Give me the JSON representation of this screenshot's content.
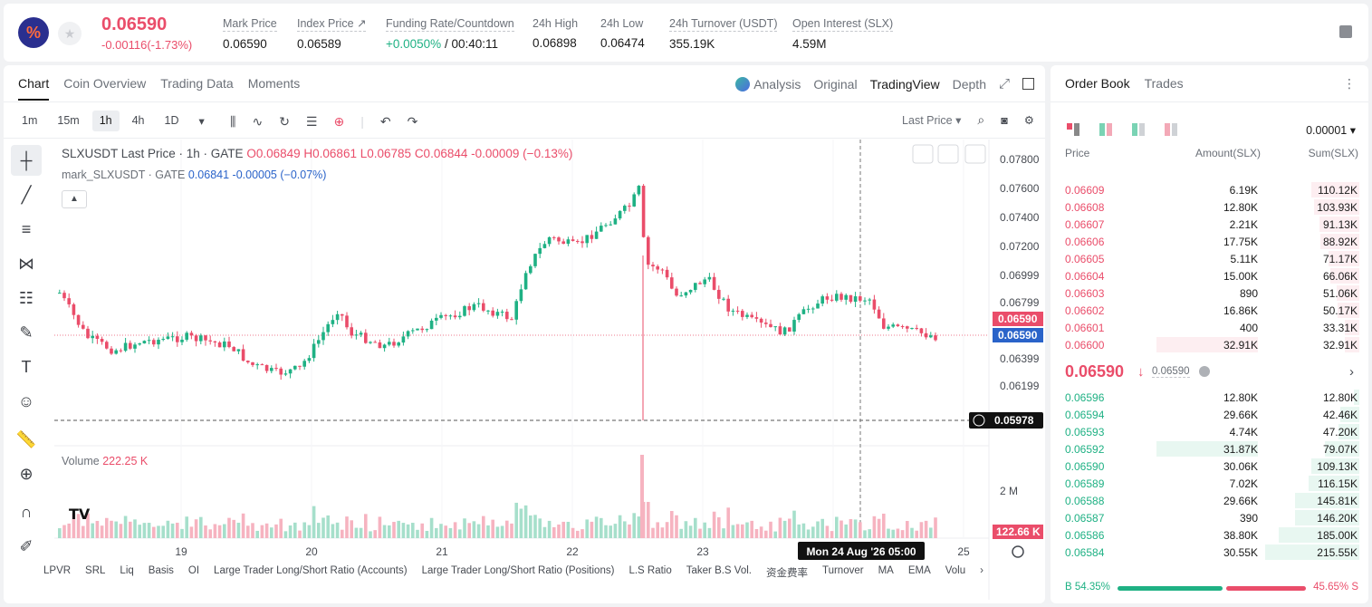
{
  "header": {
    "last_price": "0.06590",
    "change": "-0.00116(-1.73%)",
    "stats": [
      {
        "label": "Mark Price",
        "value": "0.06590"
      },
      {
        "label": "Index Price ↗",
        "value": "0.06589"
      },
      {
        "label": "Funding Rate/Countdown",
        "value_green": "+0.0050%",
        "value": " / 00:40:11"
      },
      {
        "label": "24h High",
        "value": "0.06898"
      },
      {
        "label": "24h Low",
        "value": "0.06474"
      },
      {
        "label": "24h Turnover (USDT)",
        "value": "355.19K"
      },
      {
        "label": "Open Interest (SLX)",
        "value": "4.59M"
      }
    ]
  },
  "chart_tabs": [
    "Chart",
    "Coin Overview",
    "Trading Data",
    "Moments"
  ],
  "chart_view_tabs": [
    "Analysis",
    "Original",
    "TradingView",
    "Depth"
  ],
  "intervals": [
    "1m",
    "15m",
    "1h",
    "4h",
    "1D"
  ],
  "last_price_select": "Last Price ▾",
  "legend": {
    "symbol": "SLXUSDT Last Price · 1h · GATE",
    "o": "O0.06849",
    "h": "H0.06861",
    "l": "L0.06785",
    "c": "C0.06844",
    "chg": "-0.00009 (−0.13%)",
    "mark_name": "mark_SLXUSDT · GATE",
    "mark_val": "0.06841",
    "mark_chg": "-0.00005 (−0.07%)"
  },
  "volume": {
    "label": "Volume",
    "value": "222.25 K"
  },
  "price_axis": [
    "0.07800",
    "0.07600",
    "0.07400",
    "0.07200",
    "0.06999",
    "0.06799",
    "0.06590",
    "0.06399",
    "0.06199"
  ],
  "price_tags": {
    "last": "0.06590",
    "mark": "0.06590",
    "cross": "0.05978"
  },
  "volume_axis": {
    "tick": "2 M",
    "tag": "122.66 K"
  },
  "time_axis": [
    "19",
    "20",
    "21",
    "22",
    "23",
    "25"
  ],
  "crosshair_date": "Mon 24 Aug '26   05:00",
  "bottom_indicators": [
    "LPVR",
    "SRL",
    "Liq",
    "Basis",
    "OI",
    "Large Trader Long/Short Ratio (Accounts)",
    "Large Trader Long/Short Ratio (Positions)",
    "L.S Ratio",
    "Taker B.S Vol.",
    "资金费率",
    "Turnover",
    "MA",
    "EMA",
    "Volu"
  ],
  "orderbook": {
    "tabs": [
      "Order Book",
      "Trades"
    ],
    "precision": "0.00001 ▾",
    "headers": [
      "Price",
      "Amount(SLX)",
      "Sum(SLX)"
    ],
    "asks": [
      {
        "p": "0.06609",
        "a": "6.19K",
        "s": "110.12K",
        "w": 0.51,
        "aw": 0
      },
      {
        "p": "0.06608",
        "a": "12.80K",
        "s": "103.93K",
        "w": 0.48,
        "aw": 0
      },
      {
        "p": "0.06607",
        "a": "2.21K",
        "s": "91.13K",
        "w": 0.42,
        "aw": 0
      },
      {
        "p": "0.06606",
        "a": "17.75K",
        "s": "88.92K",
        "w": 0.41,
        "aw": 0
      },
      {
        "p": "0.06605",
        "a": "5.11K",
        "s": "71.17K",
        "w": 0.33,
        "aw": 0
      },
      {
        "p": "0.06604",
        "a": "15.00K",
        "s": "66.06K",
        "w": 0.31,
        "aw": 0
      },
      {
        "p": "0.06603",
        "a": "890",
        "s": "51.06K",
        "w": 0.24,
        "aw": 0
      },
      {
        "p": "0.06602",
        "a": "16.86K",
        "s": "50.17K",
        "w": 0.23,
        "aw": 0
      },
      {
        "p": "0.06601",
        "a": "400",
        "s": "33.31K",
        "w": 0.15,
        "aw": 0
      },
      {
        "p": "0.06600",
        "a": "32.91K",
        "s": "32.91K",
        "w": 0.15,
        "aw": 1.0
      }
    ],
    "mid_price": "0.06590",
    "mid_mark": "0.06590",
    "bids": [
      {
        "p": "0.06596",
        "a": "12.80K",
        "s": "12.80K",
        "w": 0.06,
        "aw": 0
      },
      {
        "p": "0.06594",
        "a": "29.66K",
        "s": "42.46K",
        "w": 0.2,
        "aw": 0
      },
      {
        "p": "0.06593",
        "a": "4.74K",
        "s": "47.20K",
        "w": 0.22,
        "aw": 0
      },
      {
        "p": "0.06592",
        "a": "31.87K",
        "s": "79.07K",
        "w": 0.37,
        "aw": 1.0
      },
      {
        "p": "0.06590",
        "a": "30.06K",
        "s": "109.13K",
        "w": 0.51,
        "aw": 0
      },
      {
        "p": "0.06589",
        "a": "7.02K",
        "s": "116.15K",
        "w": 0.54,
        "aw": 0
      },
      {
        "p": "0.06588",
        "a": "29.66K",
        "s": "145.81K",
        "w": 0.68,
        "aw": 0
      },
      {
        "p": "0.06587",
        "a": "390",
        "s": "146.20K",
        "w": 0.68,
        "aw": 0
      },
      {
        "p": "0.06586",
        "a": "38.80K",
        "s": "185.00K",
        "w": 0.86,
        "aw": 0
      },
      {
        "p": "0.06584",
        "a": "30.55K",
        "s": "215.55K",
        "w": 1.0,
        "aw": 0
      }
    ],
    "buy_ratio": "B 54.35%",
    "sell_ratio": "45.65% S"
  },
  "colors": {
    "up": "#1fb184",
    "down": "#ea4d6a",
    "mark": "#2a63c9"
  }
}
